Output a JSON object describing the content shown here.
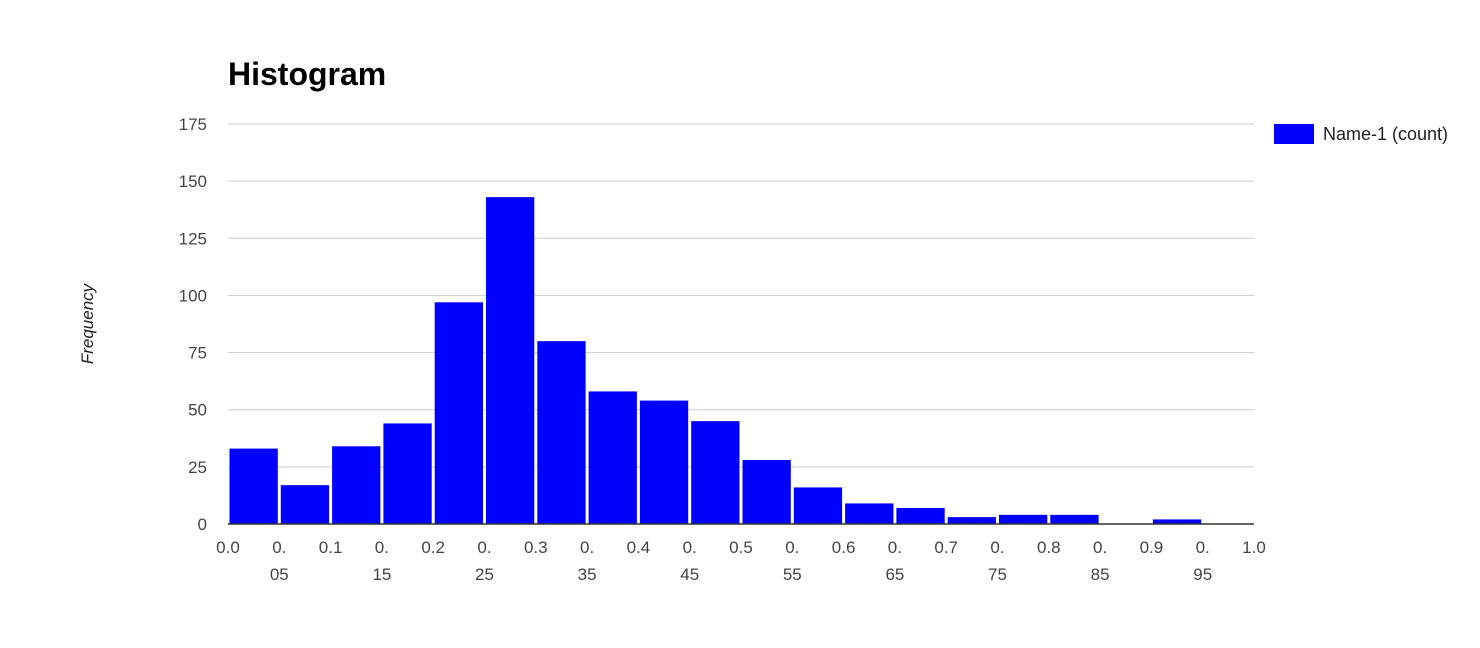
{
  "chart_data": {
    "type": "bar",
    "title": "Histogram",
    "xlabel": "",
    "ylabel": "Frequency",
    "ylim": [
      0,
      175
    ],
    "y_ticks": [
      "0",
      "25",
      "50",
      "75",
      "100",
      "125",
      "150",
      "175"
    ],
    "x_ticks": [
      [
        "0.0"
      ],
      [
        "0.",
        "05"
      ],
      [
        "0.1"
      ],
      [
        "0.",
        "15"
      ],
      [
        "0.2"
      ],
      [
        "0.",
        "25"
      ],
      [
        "0.3"
      ],
      [
        "0.",
        "35"
      ],
      [
        "0.4"
      ],
      [
        "0.",
        "45"
      ],
      [
        "0.5"
      ],
      [
        "0.",
        "55"
      ],
      [
        "0.6"
      ],
      [
        "0.",
        "65"
      ],
      [
        "0.7"
      ],
      [
        "0.",
        "75"
      ],
      [
        "0.8"
      ],
      [
        "0.",
        "85"
      ],
      [
        "0.9"
      ],
      [
        "0.",
        "95"
      ],
      [
        "1.0"
      ]
    ],
    "bin_edges": [
      0.0,
      0.05,
      0.1,
      0.15,
      0.2,
      0.25,
      0.3,
      0.35,
      0.4,
      0.45,
      0.5,
      0.55,
      0.6,
      0.65,
      0.7,
      0.75,
      0.8,
      0.85,
      0.9,
      0.95,
      1.0
    ],
    "series": [
      {
        "name": "Name-1 (count)",
        "color": "#0000ff",
        "values": [
          33,
          17,
          34,
          44,
          97,
          143,
          80,
          58,
          54,
          45,
          28,
          16,
          9,
          7,
          3,
          4,
          4,
          0,
          2,
          0
        ]
      }
    ],
    "grid": true,
    "legend_position": "right"
  }
}
